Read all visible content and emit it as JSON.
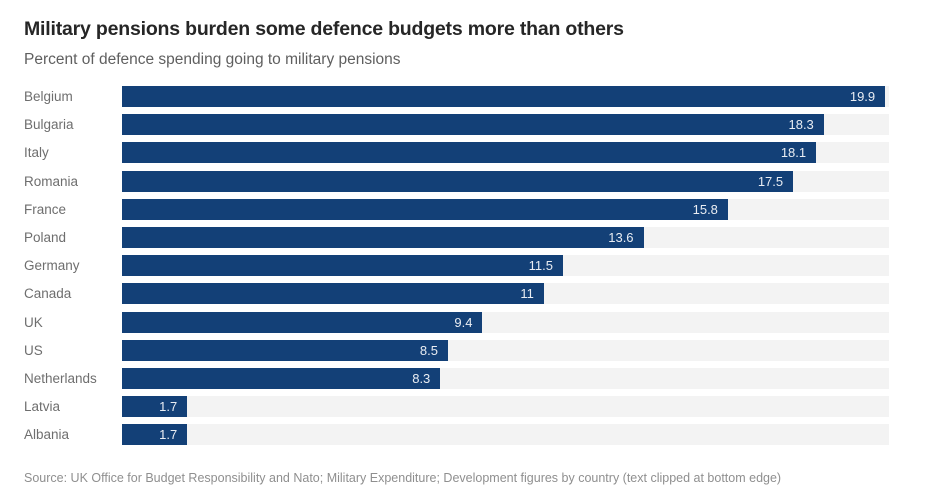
{
  "header": {
    "title": "Military pensions burden some defence budgets more than others",
    "subtitle": "Percent of defence spending going to military pensions"
  },
  "chart_data": {
    "type": "bar",
    "orientation": "horizontal",
    "title": "Military pensions burden some defence budgets more than others",
    "subtitle": "Percent of defence spending going to military pensions",
    "xlabel": "Percent of defence spending going to military pensions",
    "ylabel": "",
    "xlim": [
      0,
      20
    ],
    "grid": false,
    "legend": "none",
    "data_labels_position": "inside-end",
    "categories": [
      "Belgium",
      "Bulgaria",
      "Italy",
      "Romania",
      "France",
      "Poland",
      "Germany",
      "Canada",
      "UK",
      "US",
      "Netherlands",
      "Latvia",
      "Albania"
    ],
    "values": [
      19.9,
      18.3,
      18.1,
      17.5,
      15.8,
      13.6,
      11.5,
      11,
      9.4,
      8.5,
      8.3,
      1.7,
      1.7
    ],
    "value_labels": [
      "19.9",
      "18.3",
      "18.1",
      "17.5",
      "15.8",
      "13.6",
      "11.5",
      "11",
      "9.4",
      "8.5",
      "8.3",
      "1.7",
      "1.7"
    ]
  },
  "footer": {
    "source_note": "Source: UK Office for Budget Responsibility and Nato; Military Expenditure; Development figures by country (text clipped at bottom edge)"
  },
  "colors": {
    "bar": "#134077",
    "track": "#f3f3f3",
    "title_text": "#262626",
    "subtitle_text": "#5f5f5f",
    "category_text": "#6e6e6e",
    "value_text": "#e9edf3",
    "source_text": "#8f8f8f",
    "background": "#ffffff"
  }
}
